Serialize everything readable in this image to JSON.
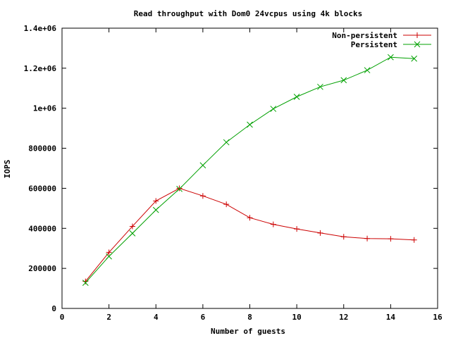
{
  "chart_data": {
    "type": "line",
    "title": "Read throughput with Dom0 24vcpus using 4k blocks",
    "xlabel": "Number of guests",
    "ylabel": "IOPS",
    "xlim": [
      0,
      16
    ],
    "ylim": [
      0,
      1400000
    ],
    "xticks": [
      0,
      2,
      4,
      6,
      8,
      10,
      12,
      14,
      16
    ],
    "xtick_labels": [
      "0",
      "2",
      "4",
      "6",
      "8",
      "10",
      "12",
      "14",
      "16"
    ],
    "yticks": [
      0,
      200000,
      400000,
      600000,
      800000,
      1000000,
      1200000,
      1400000
    ],
    "ytick_labels": [
      "0",
      "200000",
      "400000",
      "600000",
      "800000",
      "1e+06",
      "1.2e+06",
      "1.4e+06"
    ],
    "grid": false,
    "legend_position": "top-right",
    "series": [
      {
        "name": "Non-persistent",
        "color": "#cc0000",
        "marker": "plus",
        "x": [
          1,
          2,
          3,
          4,
          5,
          6,
          7,
          8,
          9,
          10,
          11,
          12,
          13,
          14,
          15
        ],
        "values": [
          135000,
          280000,
          410000,
          537000,
          600000,
          562000,
          520000,
          453000,
          420000,
          397000,
          377000,
          358000,
          349000,
          348000,
          342000
        ]
      },
      {
        "name": "Persistent",
        "color": "#00a000",
        "marker": "cross",
        "x": [
          1,
          2,
          3,
          4,
          5,
          6,
          7,
          8,
          9,
          10,
          11,
          12,
          13,
          14,
          15
        ],
        "values": [
          128000,
          260000,
          375000,
          492000,
          597000,
          715000,
          830000,
          918000,
          997000,
          1057000,
          1107000,
          1140000,
          1190000,
          1255000,
          1248000
        ]
      }
    ]
  }
}
